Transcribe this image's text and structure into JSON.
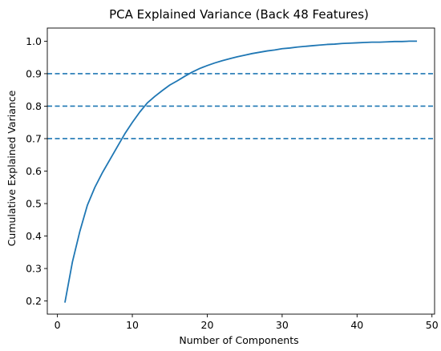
{
  "chart_data": {
    "type": "line",
    "title": "PCA Explained Variance (Back 48 Features)",
    "xlabel": "Number of Components",
    "ylabel": "Cumulative Explained Variance",
    "xlim": [
      -1.35,
      50.35
    ],
    "ylim": [
      0.1595,
      1.0405
    ],
    "xticks": [
      0,
      10,
      20,
      30,
      40,
      50
    ],
    "yticks": [
      0.2,
      0.3,
      0.4,
      0.5,
      0.6,
      0.7,
      0.8,
      0.9,
      1.0
    ],
    "xtick_labels": [
      "0",
      "10",
      "20",
      "30",
      "40",
      "50"
    ],
    "ytick_labels": [
      "0.2",
      "0.3",
      "0.4",
      "0.5",
      "0.6",
      "0.7",
      "0.8",
      "0.9",
      "1.0"
    ],
    "grid": false,
    "line_color": "#1f77b4",
    "series": [
      {
        "x": [
          1,
          2,
          3,
          4,
          5,
          6,
          7,
          8,
          9,
          10,
          11,
          12,
          13,
          14,
          15,
          16,
          17,
          18,
          19,
          20,
          21,
          22,
          23,
          24,
          25,
          26,
          27,
          28,
          29,
          30,
          31,
          32,
          33,
          34,
          35,
          36,
          37,
          38,
          39,
          40,
          41,
          42,
          43,
          44,
          45,
          46,
          47,
          48
        ],
        "values": [
          0.195,
          0.32,
          0.415,
          0.495,
          0.55,
          0.595,
          0.635,
          0.675,
          0.715,
          0.75,
          0.782,
          0.81,
          0.83,
          0.848,
          0.865,
          0.878,
          0.892,
          0.905,
          0.916,
          0.925,
          0.933,
          0.94,
          0.946,
          0.952,
          0.957,
          0.962,
          0.966,
          0.97,
          0.973,
          0.977,
          0.979,
          0.982,
          0.984,
          0.986,
          0.988,
          0.99,
          0.991,
          0.993,
          0.994,
          0.995,
          0.996,
          0.997,
          0.997,
          0.998,
          0.999,
          0.999,
          1.0,
          1.0
        ]
      }
    ],
    "reference_lines": [
      {
        "axis": "y",
        "value": 0.9,
        "style": "dashed"
      },
      {
        "axis": "y",
        "value": 0.8,
        "style": "dashed"
      },
      {
        "axis": "y",
        "value": 0.7,
        "style": "dashed"
      }
    ]
  }
}
